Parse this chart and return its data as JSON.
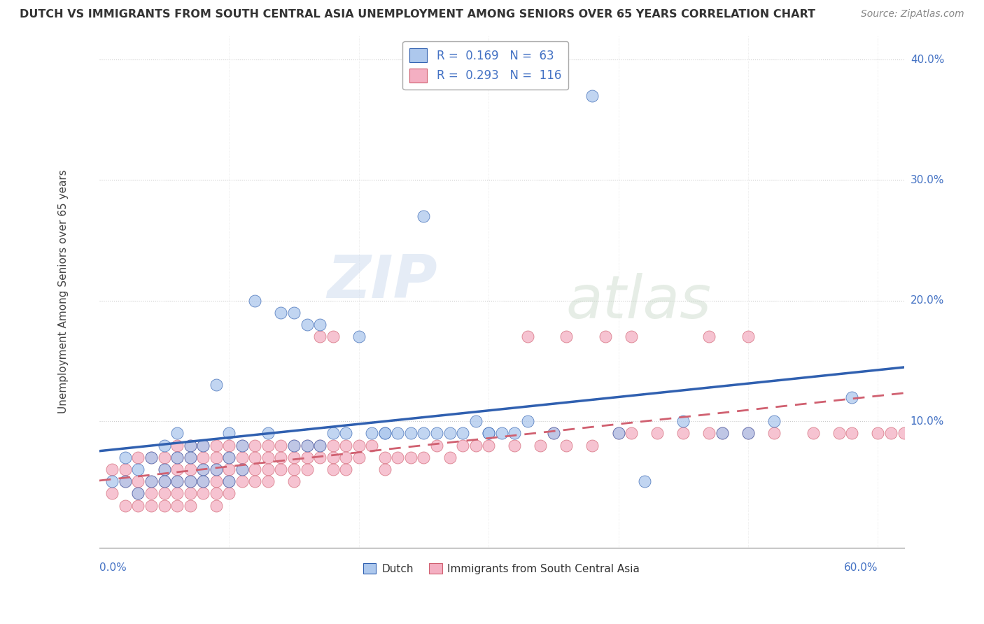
{
  "title": "DUTCH VS IMMIGRANTS FROM SOUTH CENTRAL ASIA UNEMPLOYMENT AMONG SENIORS OVER 65 YEARS CORRELATION CHART",
  "source": "Source: ZipAtlas.com",
  "ylabel": "Unemployment Among Seniors over 65 years",
  "xlim": [
    0.0,
    0.62
  ],
  "ylim": [
    -0.005,
    0.42
  ],
  "R_dutch": 0.169,
  "N_dutch": 63,
  "R_immigrants": 0.293,
  "N_immigrants": 116,
  "color_dutch": "#adc8ed",
  "color_immigrants": "#f4afc2",
  "color_dutch_line": "#3060b0",
  "color_immigrants_line": "#d06070",
  "color_text_blue": "#4472c4",
  "watermark_zip": "ZIP",
  "watermark_atlas": "atlas",
  "legend_label_dutch": "Dutch",
  "legend_label_immigrants": "Immigrants from South Central Asia",
  "dutch_x": [
    0.01,
    0.02,
    0.02,
    0.03,
    0.03,
    0.04,
    0.04,
    0.05,
    0.05,
    0.05,
    0.06,
    0.06,
    0.06,
    0.07,
    0.07,
    0.07,
    0.08,
    0.08,
    0.08,
    0.09,
    0.09,
    0.1,
    0.1,
    0.1,
    0.11,
    0.11,
    0.12,
    0.13,
    0.14,
    0.15,
    0.15,
    0.16,
    0.16,
    0.17,
    0.17,
    0.18,
    0.19,
    0.2,
    0.21,
    0.22,
    0.22,
    0.23,
    0.24,
    0.25,
    0.25,
    0.26,
    0.27,
    0.28,
    0.29,
    0.3,
    0.3,
    0.31,
    0.32,
    0.33,
    0.35,
    0.38,
    0.4,
    0.42,
    0.45,
    0.48,
    0.5,
    0.52,
    0.58
  ],
  "dutch_y": [
    0.05,
    0.07,
    0.05,
    0.06,
    0.04,
    0.07,
    0.05,
    0.08,
    0.06,
    0.05,
    0.09,
    0.07,
    0.05,
    0.08,
    0.07,
    0.05,
    0.08,
    0.06,
    0.05,
    0.13,
    0.06,
    0.09,
    0.07,
    0.05,
    0.08,
    0.06,
    0.2,
    0.09,
    0.19,
    0.19,
    0.08,
    0.18,
    0.08,
    0.18,
    0.08,
    0.09,
    0.09,
    0.17,
    0.09,
    0.09,
    0.09,
    0.09,
    0.09,
    0.27,
    0.09,
    0.09,
    0.09,
    0.09,
    0.1,
    0.09,
    0.09,
    0.09,
    0.09,
    0.1,
    0.09,
    0.37,
    0.09,
    0.05,
    0.1,
    0.09,
    0.09,
    0.1,
    0.12
  ],
  "imm_x": [
    0.01,
    0.01,
    0.02,
    0.02,
    0.02,
    0.03,
    0.03,
    0.03,
    0.03,
    0.04,
    0.04,
    0.04,
    0.04,
    0.05,
    0.05,
    0.05,
    0.05,
    0.05,
    0.06,
    0.06,
    0.06,
    0.06,
    0.06,
    0.06,
    0.07,
    0.07,
    0.07,
    0.07,
    0.07,
    0.07,
    0.08,
    0.08,
    0.08,
    0.08,
    0.08,
    0.09,
    0.09,
    0.09,
    0.09,
    0.09,
    0.09,
    0.1,
    0.1,
    0.1,
    0.1,
    0.1,
    0.11,
    0.11,
    0.11,
    0.11,
    0.12,
    0.12,
    0.12,
    0.12,
    0.13,
    0.13,
    0.13,
    0.13,
    0.14,
    0.14,
    0.14,
    0.15,
    0.15,
    0.15,
    0.15,
    0.16,
    0.16,
    0.16,
    0.17,
    0.17,
    0.17,
    0.18,
    0.18,
    0.18,
    0.18,
    0.19,
    0.19,
    0.19,
    0.2,
    0.2,
    0.21,
    0.22,
    0.22,
    0.23,
    0.24,
    0.25,
    0.26,
    0.27,
    0.28,
    0.29,
    0.3,
    0.32,
    0.34,
    0.35,
    0.36,
    0.38,
    0.4,
    0.41,
    0.43,
    0.45,
    0.47,
    0.48,
    0.5,
    0.52,
    0.55,
    0.57,
    0.58,
    0.6,
    0.61,
    0.62,
    0.47,
    0.5,
    0.33,
    0.36,
    0.39,
    0.41
  ],
  "imm_y": [
    0.06,
    0.04,
    0.06,
    0.05,
    0.03,
    0.07,
    0.05,
    0.04,
    0.03,
    0.07,
    0.05,
    0.04,
    0.03,
    0.07,
    0.06,
    0.05,
    0.04,
    0.03,
    0.08,
    0.07,
    0.06,
    0.05,
    0.04,
    0.03,
    0.08,
    0.07,
    0.06,
    0.05,
    0.04,
    0.03,
    0.08,
    0.07,
    0.06,
    0.05,
    0.04,
    0.08,
    0.07,
    0.06,
    0.05,
    0.04,
    0.03,
    0.08,
    0.07,
    0.06,
    0.05,
    0.04,
    0.08,
    0.07,
    0.06,
    0.05,
    0.08,
    0.07,
    0.06,
    0.05,
    0.08,
    0.07,
    0.06,
    0.05,
    0.08,
    0.07,
    0.06,
    0.08,
    0.07,
    0.06,
    0.05,
    0.08,
    0.07,
    0.06,
    0.17,
    0.08,
    0.07,
    0.17,
    0.08,
    0.07,
    0.06,
    0.08,
    0.07,
    0.06,
    0.08,
    0.07,
    0.08,
    0.07,
    0.06,
    0.07,
    0.07,
    0.07,
    0.08,
    0.07,
    0.08,
    0.08,
    0.08,
    0.08,
    0.08,
    0.09,
    0.08,
    0.08,
    0.09,
    0.09,
    0.09,
    0.09,
    0.09,
    0.09,
    0.09,
    0.09,
    0.09,
    0.09,
    0.09,
    0.09,
    0.09,
    0.09,
    0.17,
    0.17,
    0.17,
    0.17,
    0.17,
    0.17
  ]
}
